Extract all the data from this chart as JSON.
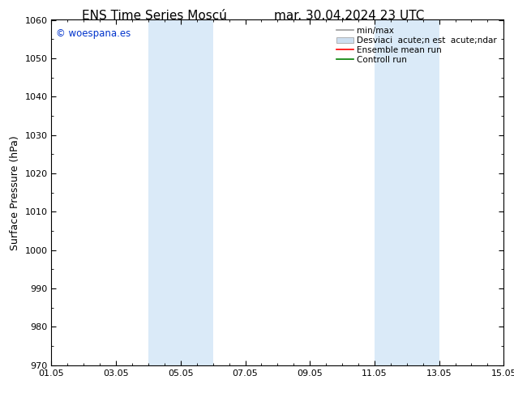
{
  "title": "ENS Time Series Moscú",
  "title2": "mar. 30.04.2024 23 UTC",
  "ylabel": "Surface Pressure (hPa)",
  "ylim": [
    970,
    1060
  ],
  "yticks": [
    970,
    980,
    990,
    1000,
    1010,
    1020,
    1030,
    1040,
    1050,
    1060
  ],
  "xticks_labels": [
    "01.05",
    "03.05",
    "05.05",
    "07.05",
    "09.05",
    "11.05",
    "13.05",
    "15.05"
  ],
  "xticks_values": [
    0,
    2,
    4,
    6,
    8,
    10,
    12,
    14
  ],
  "xlim": [
    0,
    14
  ],
  "watermark": "© woespana.es",
  "watermark_color": "#0033cc",
  "bg_color": "#ffffff",
  "plot_bg_color": "#ffffff",
  "shaded_regions": [
    {
      "x_start": 3.0,
      "x_end": 5.0,
      "color": "#daeaf8"
    },
    {
      "x_start": 10.0,
      "x_end": 12.0,
      "color": "#daeaf8"
    }
  ],
  "legend_entries": [
    {
      "label": "min/max",
      "color": "#999999",
      "lw": 1.2,
      "type": "line"
    },
    {
      "label": "Desviaci  acute;n est  acute;ndar",
      "color": "#cddff0",
      "type": "band"
    },
    {
      "label": "Ensemble mean run",
      "color": "#ff0000",
      "lw": 1.2,
      "type": "line"
    },
    {
      "label": "Controll run",
      "color": "#008000",
      "lw": 1.2,
      "type": "line"
    }
  ],
  "title_fontsize": 11,
  "tick_fontsize": 8,
  "label_fontsize": 9,
  "legend_fontsize": 7.5
}
